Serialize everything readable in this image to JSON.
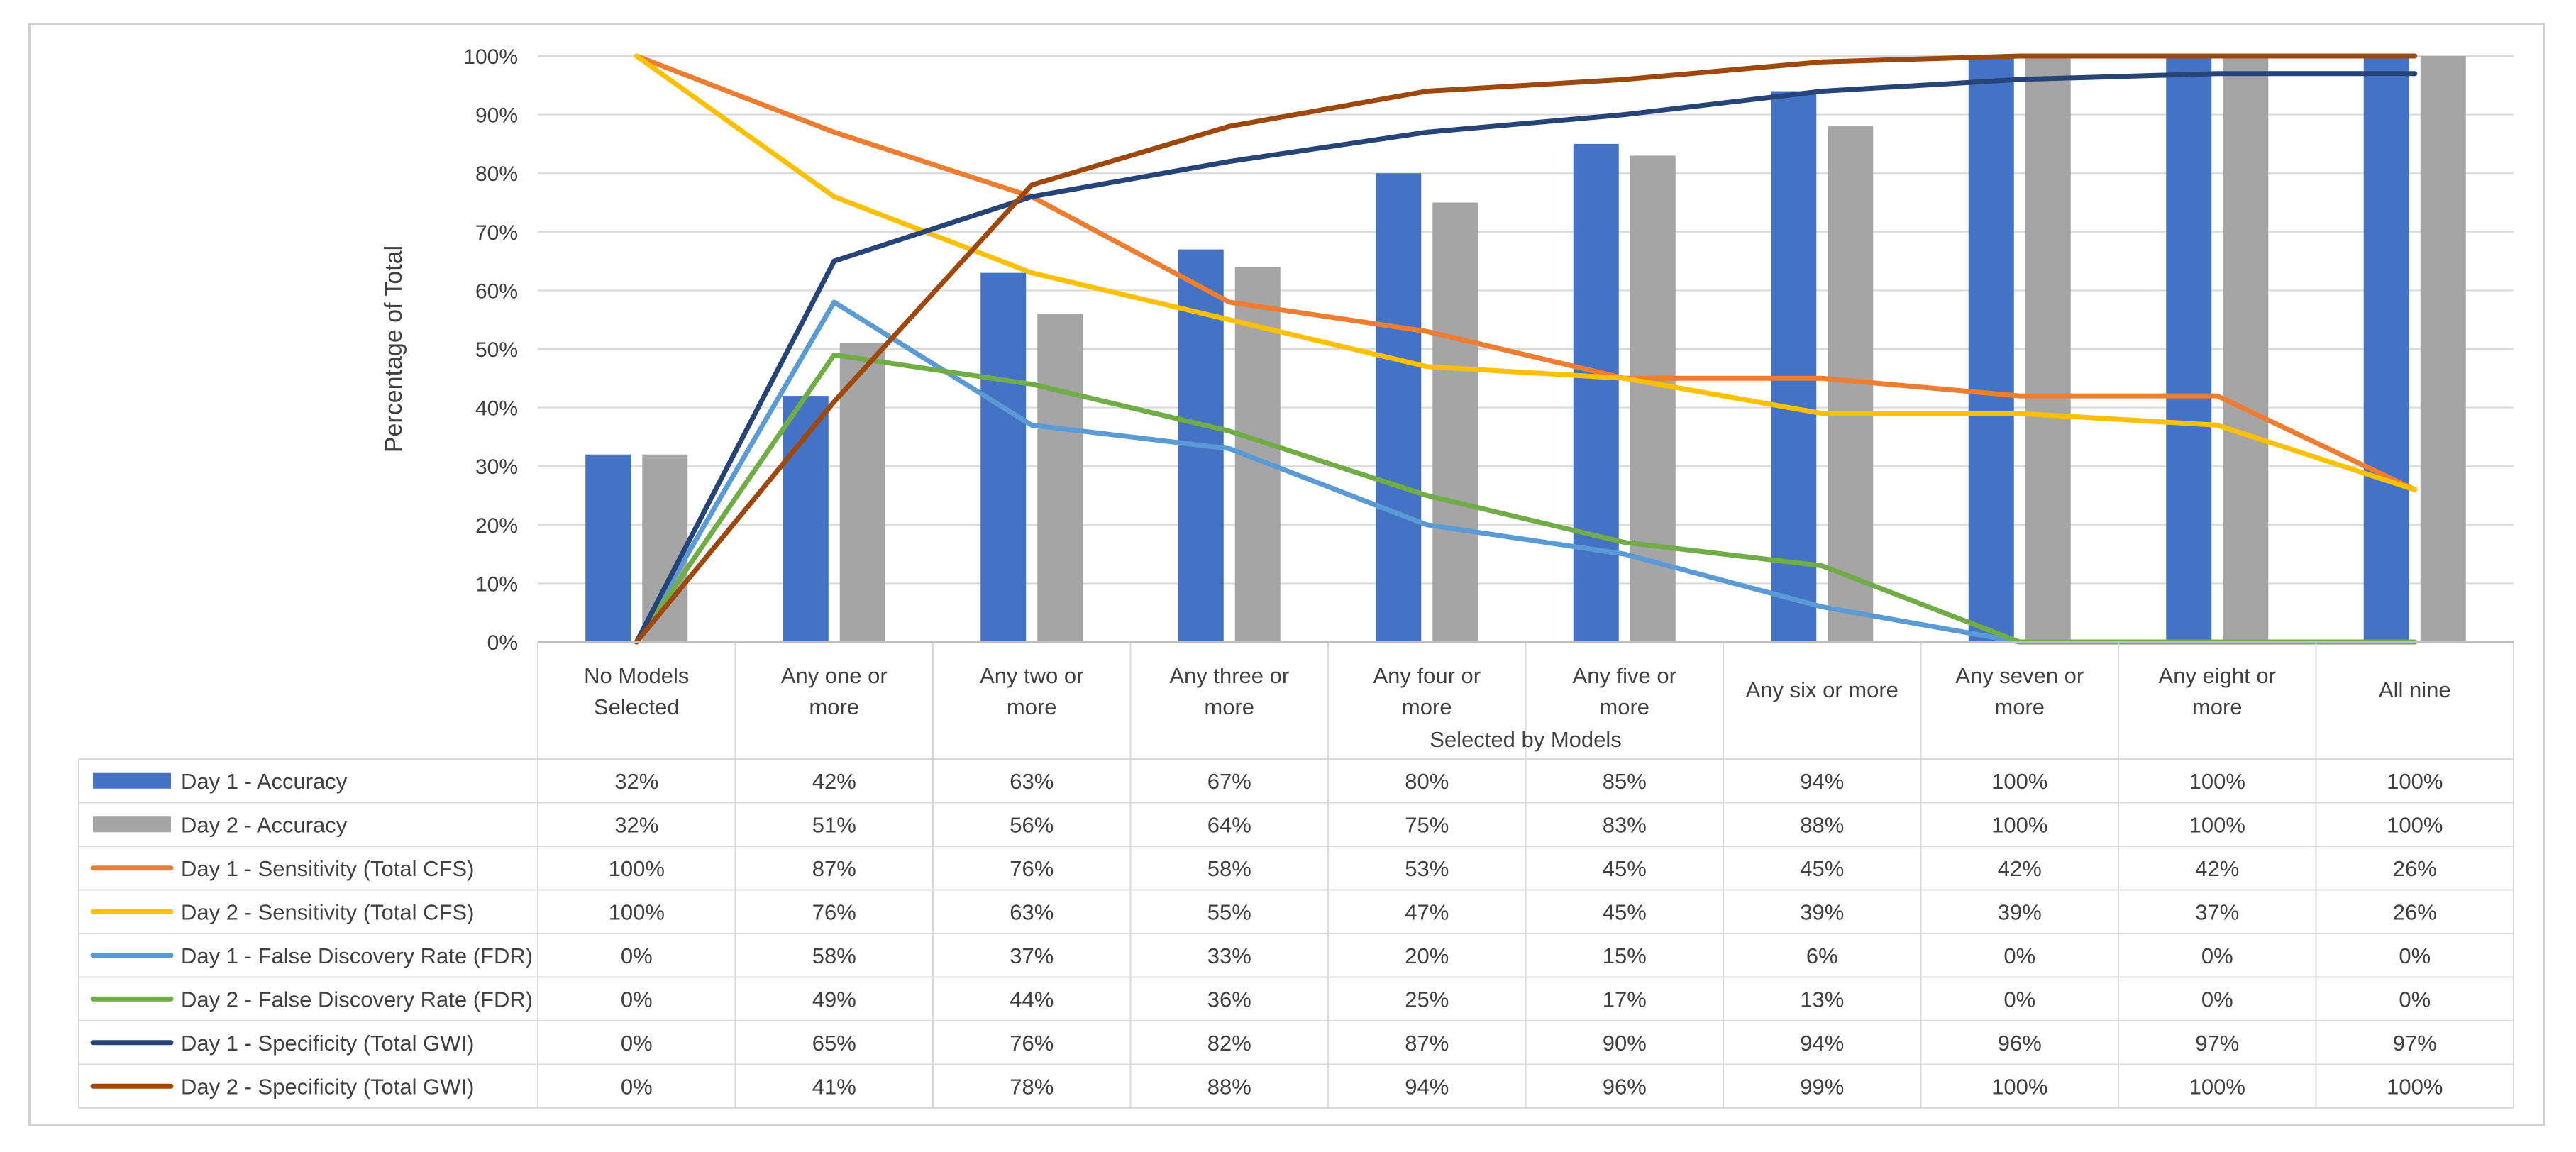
{
  "chart_data": {
    "type": "bar+line",
    "title": "",
    "ylabel": "Percentage of Total",
    "xlabel": "Selected by Models",
    "ylim": [
      0,
      100
    ],
    "yticks": [
      "0%",
      "10%",
      "20%",
      "30%",
      "40%",
      "50%",
      "60%",
      "70%",
      "80%",
      "90%",
      "100%"
    ],
    "categories": [
      [
        "No Models",
        "Selected"
      ],
      [
        "Any one or",
        "more"
      ],
      [
        "Any two or",
        "more"
      ],
      [
        "Any three or",
        "more"
      ],
      [
        "Any four or",
        "more"
      ],
      [
        "Any five or",
        "more"
      ],
      [
        "Any six or more"
      ],
      [
        "Any seven or",
        "more"
      ],
      [
        "Any eight or",
        "more"
      ],
      [
        "All nine"
      ]
    ],
    "legend_placement": "data-table-left",
    "series": [
      {
        "name": "Day 1 - Accuracy",
        "kind": "bar",
        "color": "#4472c4",
        "values": [
          32,
          42,
          63,
          67,
          80,
          85,
          94,
          100,
          100,
          100
        ],
        "labels": [
          "32%",
          "42%",
          "63%",
          "67%",
          "80%",
          "85%",
          "94%",
          "100%",
          "100%",
          "100%"
        ]
      },
      {
        "name": "Day 2 - Accuracy",
        "kind": "bar",
        "color": "#a5a5a5",
        "values": [
          32,
          51,
          56,
          64,
          75,
          83,
          88,
          100,
          100,
          100
        ],
        "labels": [
          "32%",
          "51%",
          "56%",
          "64%",
          "75%",
          "83%",
          "88%",
          "100%",
          "100%",
          "100%"
        ]
      },
      {
        "name": "Day 1 - Sensitivity (Total CFS)",
        "kind": "line",
        "color": "#ed7d31",
        "values": [
          100,
          87,
          76,
          58,
          53,
          45,
          45,
          42,
          42,
          26
        ],
        "labels": [
          "100%",
          "87%",
          "76%",
          "58%",
          "53%",
          "45%",
          "45%",
          "42%",
          "42%",
          "26%"
        ]
      },
      {
        "name": "Day 2 - Sensitivity (Total CFS)",
        "kind": "line",
        "color": "#ffc000",
        "values": [
          100,
          76,
          63,
          55,
          47,
          45,
          39,
          39,
          37,
          26
        ],
        "labels": [
          "100%",
          "76%",
          "63%",
          "55%",
          "47%",
          "45%",
          "39%",
          "39%",
          "37%",
          "26%"
        ]
      },
      {
        "name": "Day 1 - False Discovery Rate (FDR)",
        "kind": "line",
        "color": "#5b9bd5",
        "values": [
          0,
          58,
          37,
          33,
          20,
          15,
          6,
          0,
          0,
          0
        ],
        "labels": [
          "0%",
          "58%",
          "37%",
          "33%",
          "20%",
          "15%",
          "6%",
          "0%",
          "0%",
          "0%"
        ]
      },
      {
        "name": "Day 2 - False Discovery Rate (FDR)",
        "kind": "line",
        "color": "#70ad47",
        "values": [
          0,
          49,
          44,
          36,
          25,
          17,
          13,
          0,
          0,
          0
        ],
        "labels": [
          "0%",
          "49%",
          "44%",
          "36%",
          "25%",
          "17%",
          "13%",
          "0%",
          "0%",
          "0%"
        ]
      },
      {
        "name": "Day 1 - Specificity (Total GWI)",
        "kind": "line",
        "color": "#264478",
        "values": [
          0,
          65,
          76,
          82,
          87,
          90,
          94,
          96,
          97,
          97
        ],
        "labels": [
          "0%",
          "65%",
          "76%",
          "82%",
          "87%",
          "90%",
          "94%",
          "96%",
          "97%",
          "97%"
        ]
      },
      {
        "name": "Day 2 - Specificity (Total GWI)",
        "kind": "line",
        "color": "#9e480e",
        "values": [
          0,
          41,
          78,
          88,
          94,
          96,
          99,
          100,
          100,
          100
        ],
        "labels": [
          "0%",
          "41%",
          "78%",
          "88%",
          "94%",
          "96%",
          "99%",
          "100%",
          "100%",
          "100%"
        ]
      }
    ]
  }
}
